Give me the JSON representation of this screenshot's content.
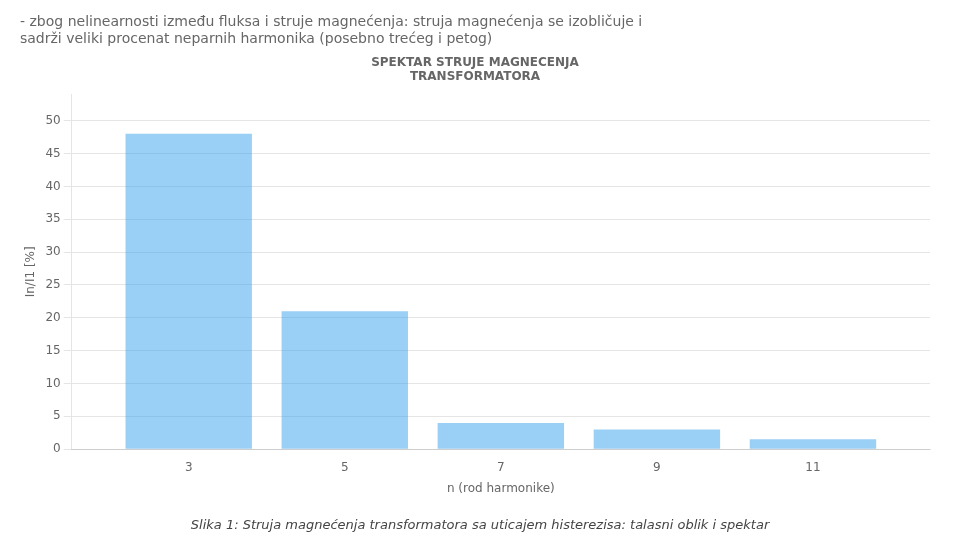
{
  "chart_data": {
    "type": "bar",
    "title": "- zbog nelinearnosti između fluksa i struje magnećenja: struja magnećenja se izobličuje i\nsadrži veliki procenat neparnih harmonika (posebno trećeg i petog)",
    "subtitle": "SPEKTAR STRUJE MAGNECENJA\nTRANSFORMATORA",
    "caption": "Slika 1: Struja magnećenja transformatora sa uticajem histerezisa: talasni oblik i spektar",
    "xlabel": "n (rod harmonike)",
    "ylabel": "In/I1 [%]",
    "x": [
      3,
      5,
      7,
      9,
      11
    ],
    "values": [
      48,
      21,
      4,
      3,
      1.5
    ],
    "xlim": [
      1.5,
      12.5
    ],
    "xticks": [
      3,
      5,
      7,
      9,
      11
    ],
    "ylim": [
      0,
      54
    ],
    "yticks": [
      0,
      5,
      10,
      15,
      20,
      25,
      30,
      35,
      40,
      45,
      50
    ],
    "grid": true
  }
}
